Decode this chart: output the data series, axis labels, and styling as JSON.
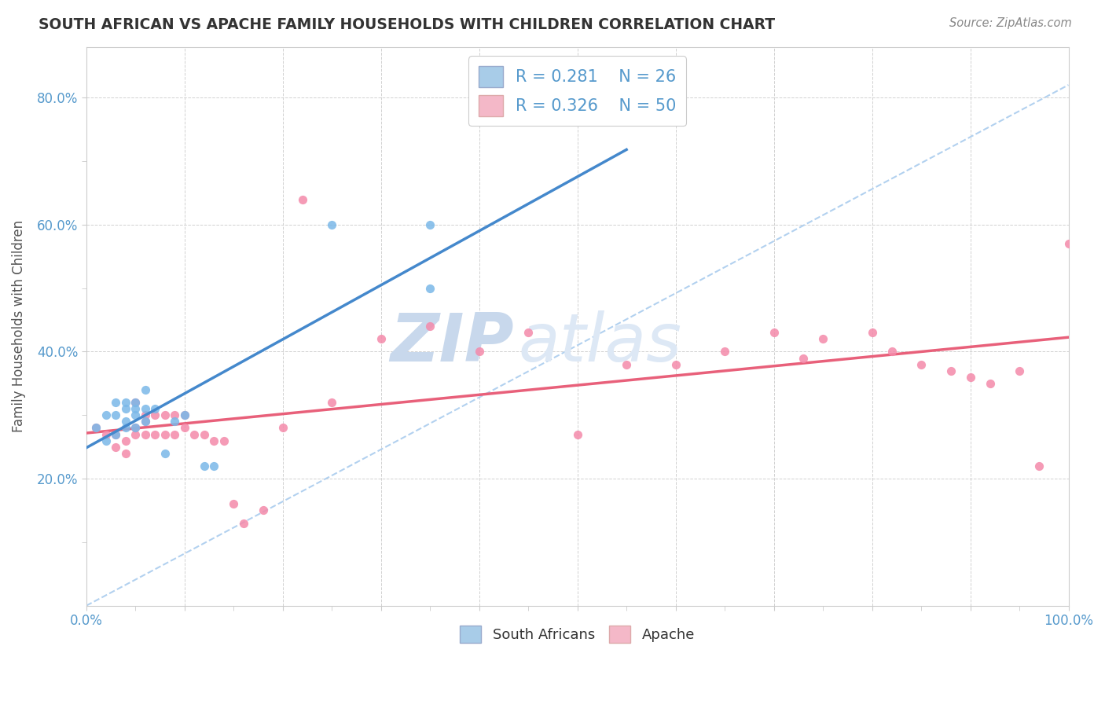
{
  "title": "SOUTH AFRICAN VS APACHE FAMILY HOUSEHOLDS WITH CHILDREN CORRELATION CHART",
  "source": "Source: ZipAtlas.com",
  "ylabel": "Family Households with Children",
  "xlim": [
    0.0,
    1.0
  ],
  "ylim": [
    0.0,
    0.88
  ],
  "sa_R": "0.281",
  "sa_N": "26",
  "ap_R": "0.326",
  "ap_N": "50",
  "sa_color": "#7ab8e8",
  "ap_color": "#f48aaa",
  "sa_legend_color": "#a8cce8",
  "ap_legend_color": "#f4b8c8",
  "sa_line_color": "#4488cc",
  "ap_line_color": "#e8607a",
  "diag_line_color": "#aaccee",
  "watermark_color": "#dde8f5",
  "bg_color": "#ffffff",
  "title_color": "#333333",
  "source_color": "#888888",
  "tick_color": "#5599cc",
  "label_color": "#555555",
  "sa_x": [
    0.01,
    0.02,
    0.02,
    0.03,
    0.03,
    0.03,
    0.04,
    0.04,
    0.04,
    0.04,
    0.05,
    0.05,
    0.05,
    0.05,
    0.06,
    0.06,
    0.06,
    0.07,
    0.08,
    0.09,
    0.1,
    0.12,
    0.13,
    0.25,
    0.35,
    0.35
  ],
  "sa_y": [
    0.28,
    0.26,
    0.3,
    0.27,
    0.3,
    0.32,
    0.28,
    0.29,
    0.31,
    0.32,
    0.28,
    0.3,
    0.31,
    0.32,
    0.29,
    0.31,
    0.34,
    0.31,
    0.24,
    0.29,
    0.3,
    0.22,
    0.22,
    0.6,
    0.6,
    0.5
  ],
  "ap_x": [
    0.01,
    0.02,
    0.03,
    0.03,
    0.04,
    0.04,
    0.05,
    0.05,
    0.05,
    0.06,
    0.06,
    0.06,
    0.07,
    0.07,
    0.08,
    0.08,
    0.09,
    0.09,
    0.1,
    0.1,
    0.11,
    0.12,
    0.13,
    0.14,
    0.15,
    0.16,
    0.18,
    0.2,
    0.22,
    0.25,
    0.3,
    0.35,
    0.4,
    0.45,
    0.5,
    0.55,
    0.6,
    0.65,
    0.7,
    0.73,
    0.75,
    0.8,
    0.82,
    0.85,
    0.88,
    0.9,
    0.92,
    0.95,
    0.97,
    1.0
  ],
  "ap_y": [
    0.28,
    0.27,
    0.25,
    0.27,
    0.24,
    0.26,
    0.32,
    0.27,
    0.28,
    0.3,
    0.27,
    0.29,
    0.3,
    0.27,
    0.3,
    0.27,
    0.3,
    0.27,
    0.28,
    0.3,
    0.27,
    0.27,
    0.26,
    0.26,
    0.16,
    0.13,
    0.15,
    0.28,
    0.64,
    0.32,
    0.42,
    0.44,
    0.4,
    0.43,
    0.27,
    0.38,
    0.38,
    0.4,
    0.43,
    0.39,
    0.42,
    0.43,
    0.4,
    0.38,
    0.37,
    0.36,
    0.35,
    0.37,
    0.22,
    0.57
  ]
}
